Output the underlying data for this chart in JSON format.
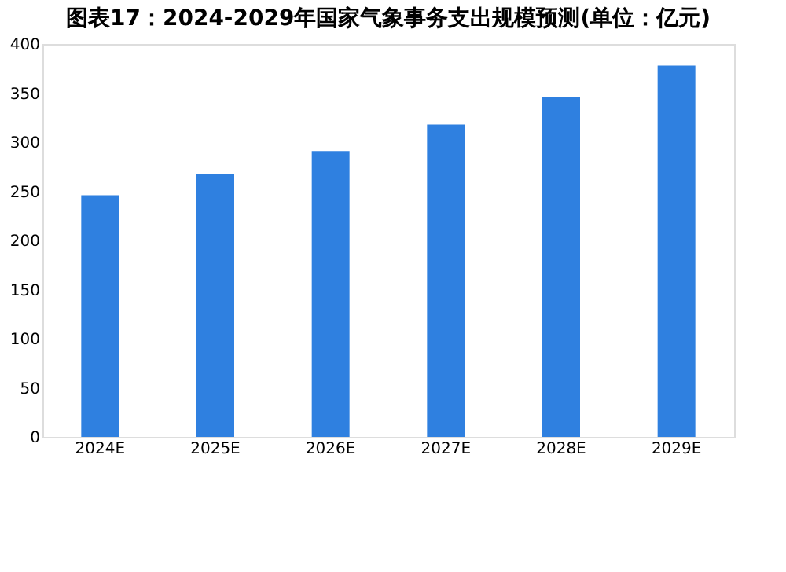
{
  "chart_data": {
    "type": "bar",
    "title": "图表17：2024-2029年国家气象事务支出规模预测(单位：亿元)",
    "categories": [
      "2024E",
      "2025E",
      "2026E",
      "2027E",
      "2028E",
      "2029E"
    ],
    "values": [
      246,
      268,
      291,
      318,
      346,
      378
    ],
    "color": "#2f80e0",
    "ylim": [
      0,
      400
    ],
    "yticks": [
      0,
      50,
      100,
      150,
      200,
      250,
      300,
      350,
      400
    ],
    "grid": false
  }
}
